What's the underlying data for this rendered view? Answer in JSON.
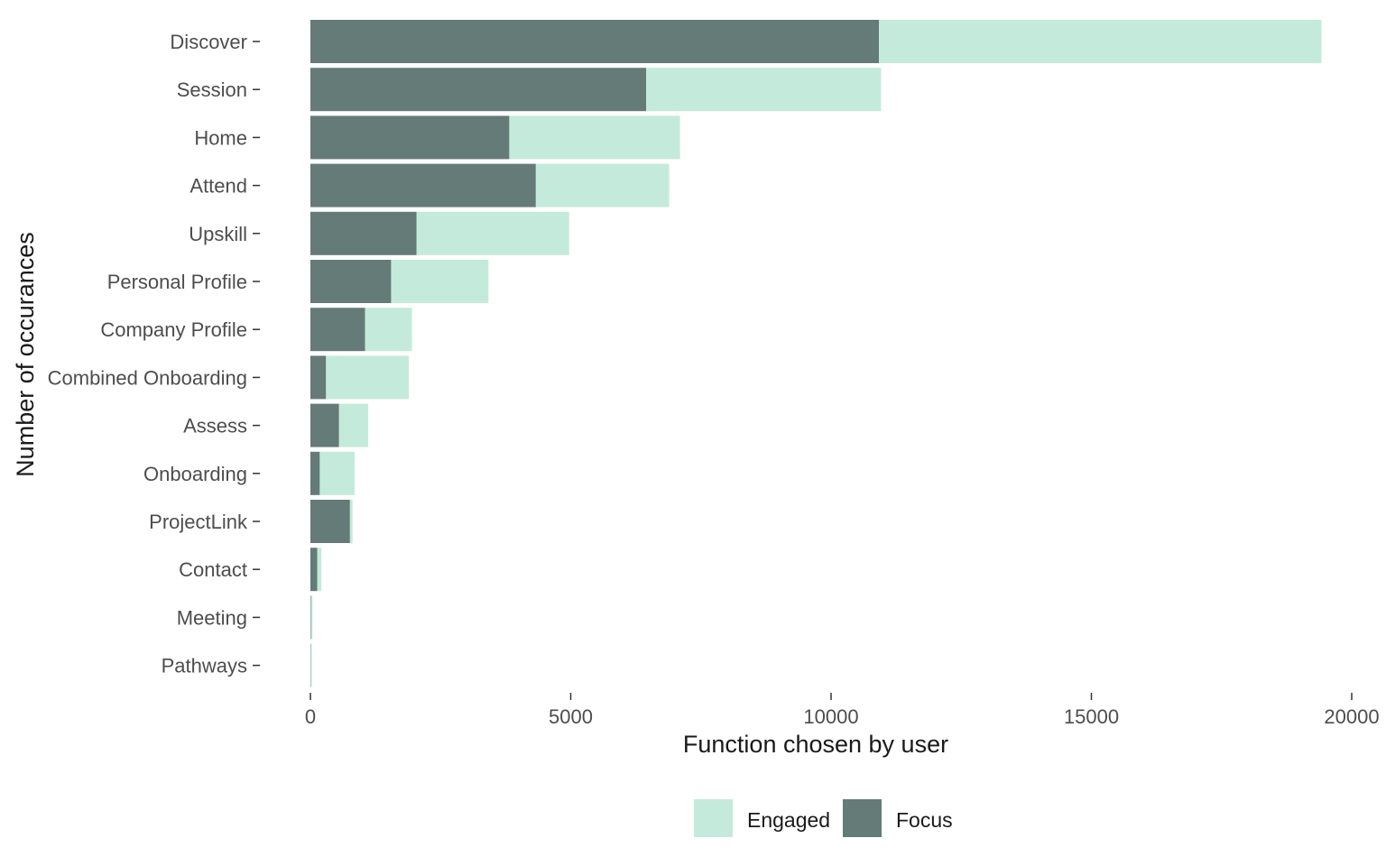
{
  "chart_data": {
    "type": "bar",
    "orientation": "horizontal",
    "stacked": true,
    "categories": [
      "Discover",
      "Session",
      "Home",
      "Attend",
      "Upskill",
      "Personal Profile",
      "Company Profile",
      "Combined Onboarding",
      "Assess",
      "Onboarding",
      "ProjectLink",
      "Contact",
      "Meeting",
      "Pathways"
    ],
    "series": [
      {
        "name": "Focus",
        "color": "#647b77",
        "values": [
          10920,
          6450,
          3820,
          4330,
          2040,
          1550,
          1050,
          300,
          550,
          180,
          760,
          130,
          10,
          5
        ]
      },
      {
        "name": "Engaged",
        "color": "#c4eadb",
        "values": [
          8500,
          4510,
          3280,
          2560,
          2930,
          1870,
          900,
          1590,
          560,
          670,
          50,
          80,
          30,
          20
        ]
      }
    ],
    "x_ticks": [
      "0",
      "5000",
      "10000",
      "15000",
      "20000"
    ],
    "xlim": [
      0,
      20000
    ],
    "xlabel": "Function chosen by user",
    "ylabel": "Number of occurances",
    "legend": {
      "position": "bottom",
      "items": [
        {
          "label": "Engaged",
          "color": "#c4eadb"
        },
        {
          "label": "Focus",
          "color": "#647b77"
        }
      ]
    },
    "grid": false
  }
}
